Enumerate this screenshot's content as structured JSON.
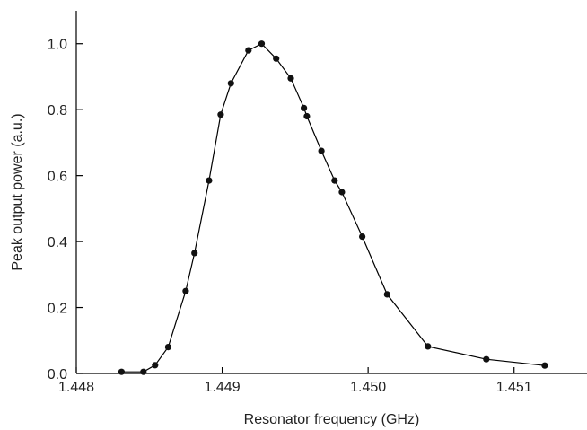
{
  "chart_data": {
    "type": "line",
    "title": "",
    "xlabel": "Resonator frequency (GHz)",
    "ylabel": "Peak output power (a.u.)",
    "xlim": [
      1.448,
      1.4515
    ],
    "ylim": [
      0.0,
      1.1
    ],
    "xticks": [
      1.448,
      1.449,
      1.45,
      1.451
    ],
    "xtick_labels": [
      "1.448",
      "1.449",
      "1.450",
      "1.451"
    ],
    "yticks": [
      0.0,
      0.2,
      0.4,
      0.6,
      0.8,
      1.0
    ],
    "ytick_labels": [
      "0.0",
      "0.2",
      "0.4",
      "0.6",
      "0.8",
      "1.0"
    ],
    "grid": false,
    "colors": {
      "line": "#000000",
      "marker": "#111111",
      "axis": "#000000"
    },
    "series": [
      {
        "marker": "circle",
        "x": [
          1.44831,
          1.44846,
          1.44854,
          1.44863,
          1.44875,
          1.44881,
          1.44891,
          1.44899,
          1.44906,
          1.44918,
          1.44927,
          1.44937,
          1.44947,
          1.44956,
          1.44958,
          1.44968,
          1.44977,
          1.44982,
          1.44996,
          1.45013,
          1.45041,
          1.45081,
          1.45121
        ],
        "y": [
          0.005,
          0.005,
          0.025,
          0.08,
          0.25,
          0.365,
          0.585,
          0.785,
          0.88,
          0.98,
          1.0,
          0.955,
          0.895,
          0.805,
          0.78,
          0.675,
          0.585,
          0.55,
          0.415,
          0.24,
          0.082,
          0.043,
          0.024
        ]
      }
    ]
  }
}
